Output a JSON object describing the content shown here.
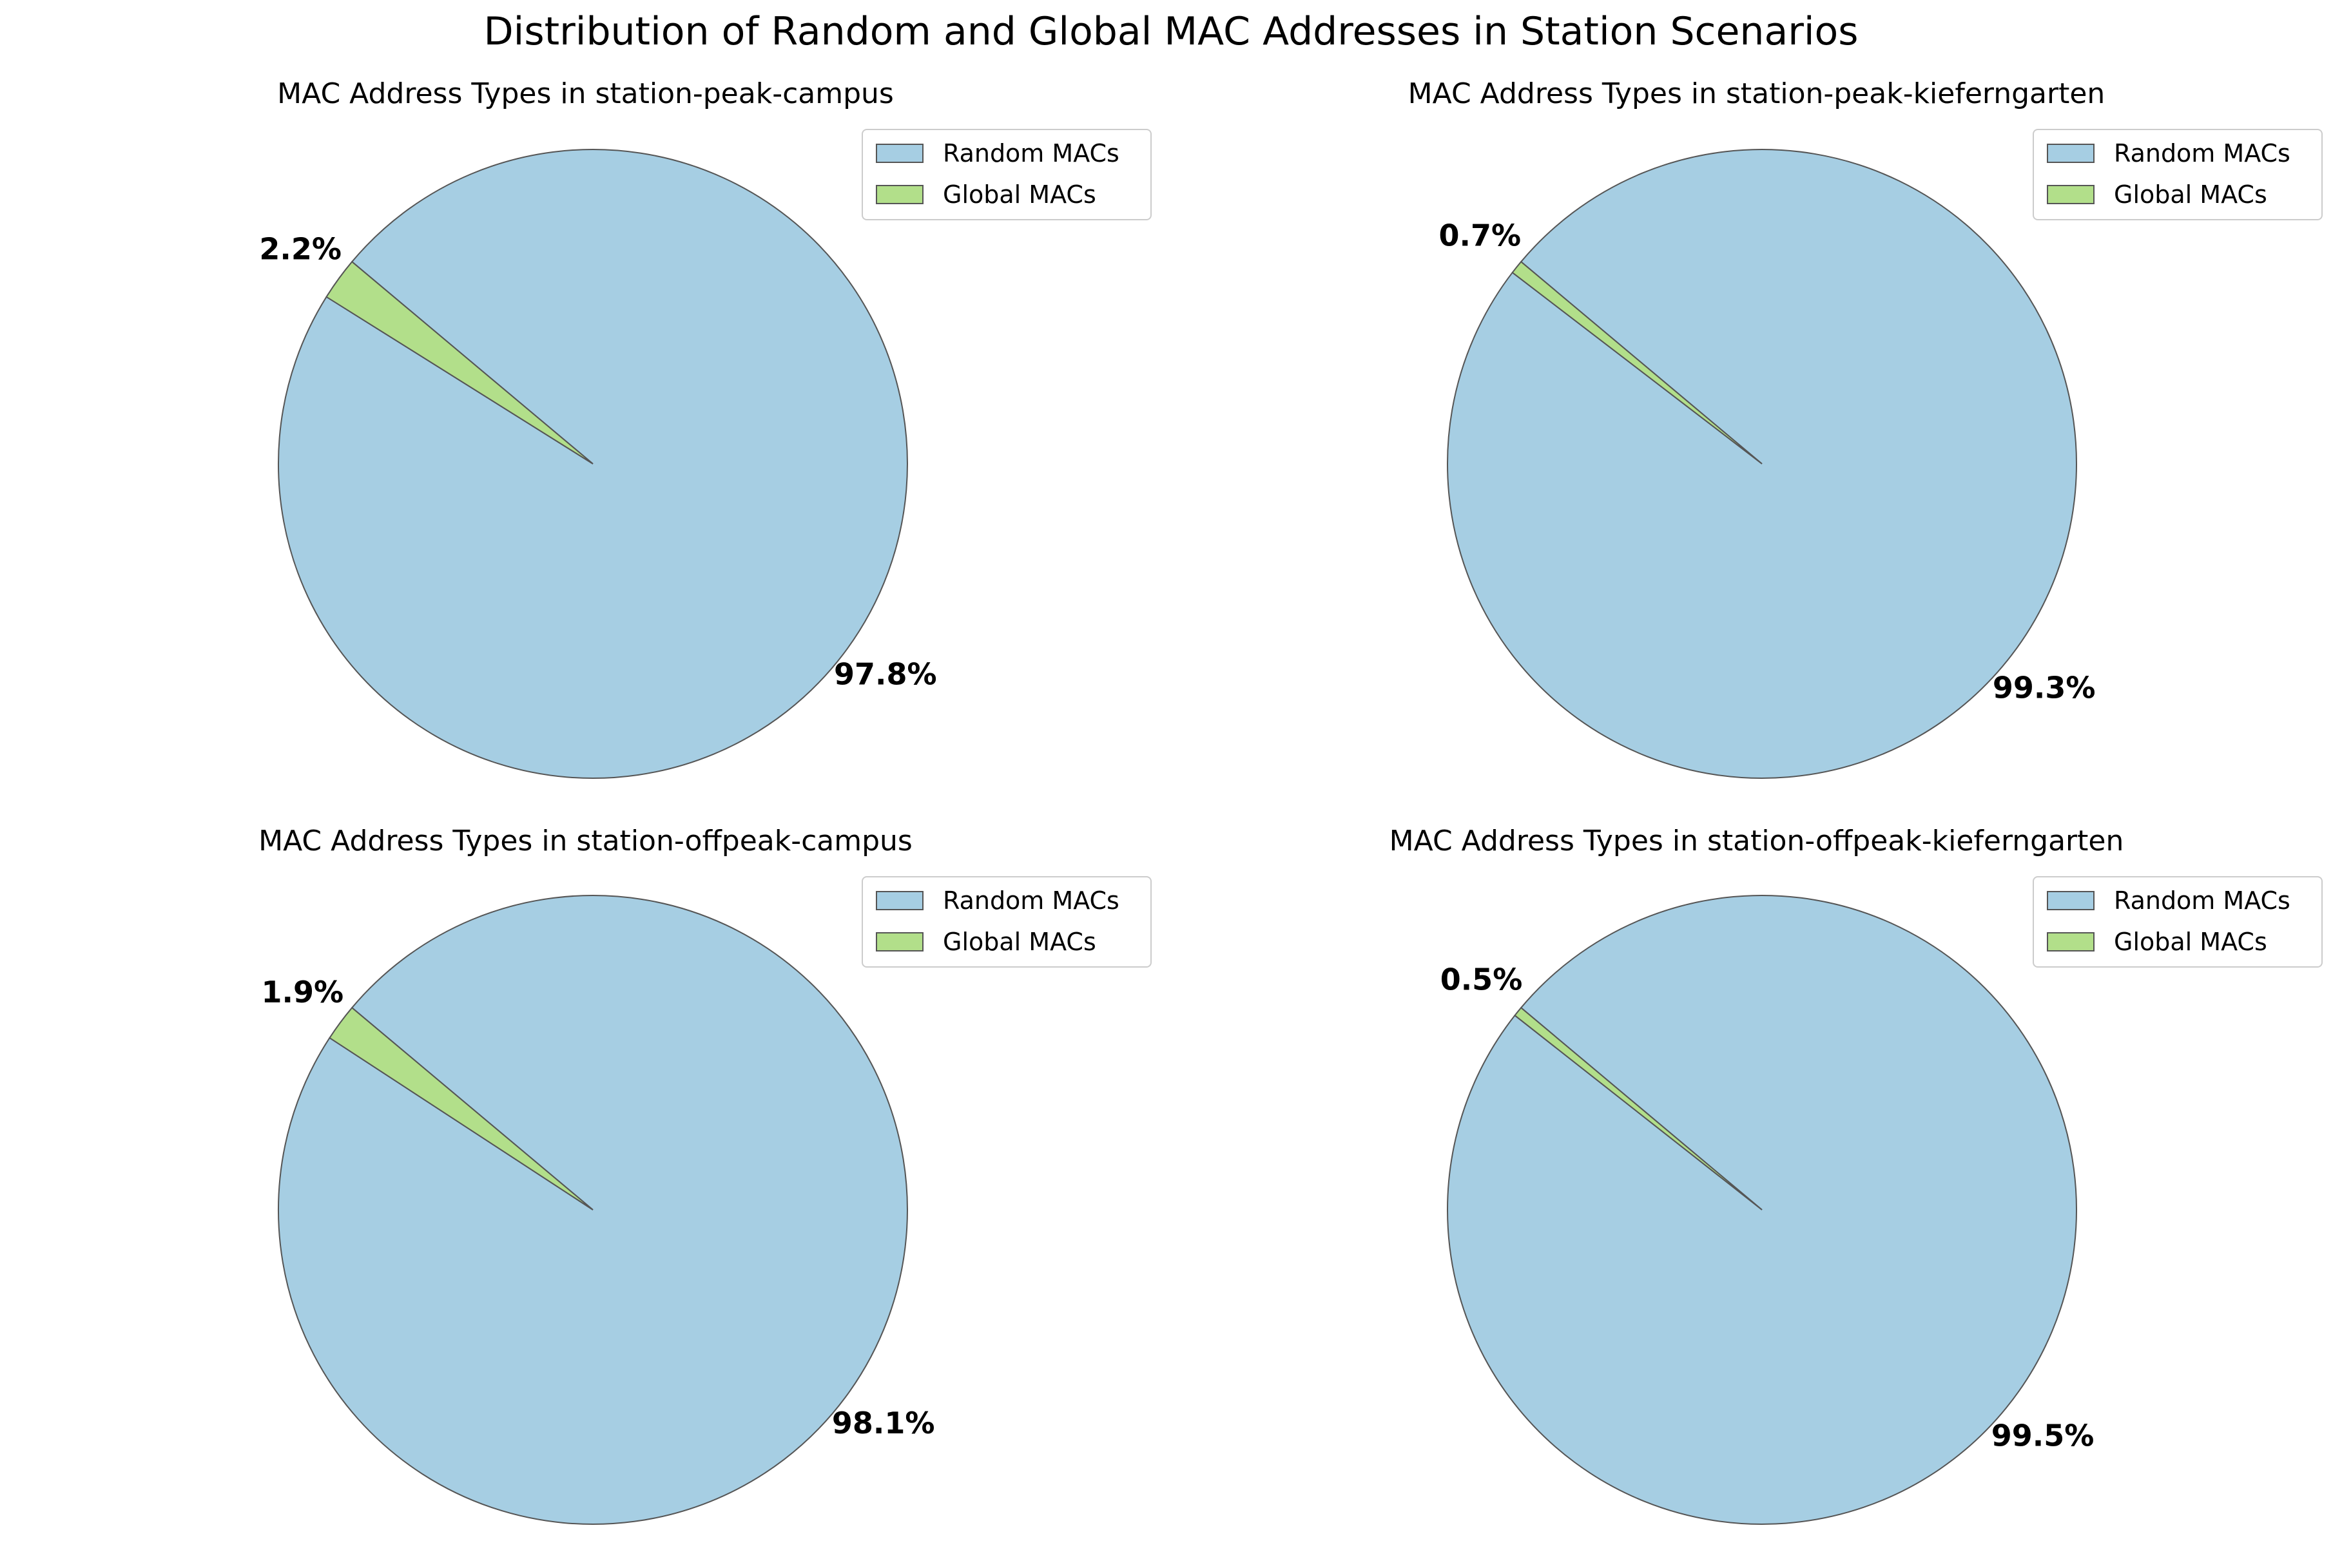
{
  "figure_title": "Distribution of Random and Global MAC Addresses in Station Scenarios",
  "colors": {
    "random": "#a6cee3",
    "global": "#b2df8a",
    "edge": "#555555"
  },
  "chart_data": [
    {
      "type": "pie",
      "title": "MAC Address Types in station-peak-campus",
      "labels": [
        "Random MACs",
        "Global MACs"
      ],
      "values": [
        97.8,
        2.2
      ],
      "value_labels": [
        "97.8%",
        "2.2%"
      ],
      "legend": "top-right"
    },
    {
      "type": "pie",
      "title": "MAC Address Types in station-peak-kieferngarten",
      "labels": [
        "Random MACs",
        "Global MACs"
      ],
      "values": [
        99.3,
        0.7
      ],
      "value_labels": [
        "99.3%",
        "0.7%"
      ],
      "legend": "top-right"
    },
    {
      "type": "pie",
      "title": "MAC Address Types in station-offpeak-campus",
      "labels": [
        "Random MACs",
        "Global MACs"
      ],
      "values": [
        98.1,
        1.9
      ],
      "value_labels": [
        "98.1%",
        "1.9%"
      ],
      "legend": "top-right"
    },
    {
      "type": "pie",
      "title": "MAC Address Types in station-offpeak-kieferngarten",
      "labels": [
        "Random MACs",
        "Global MACs"
      ],
      "values": [
        99.5,
        0.5
      ],
      "value_labels": [
        "99.5%",
        "0.5%"
      ],
      "legend": "top-right"
    }
  ]
}
